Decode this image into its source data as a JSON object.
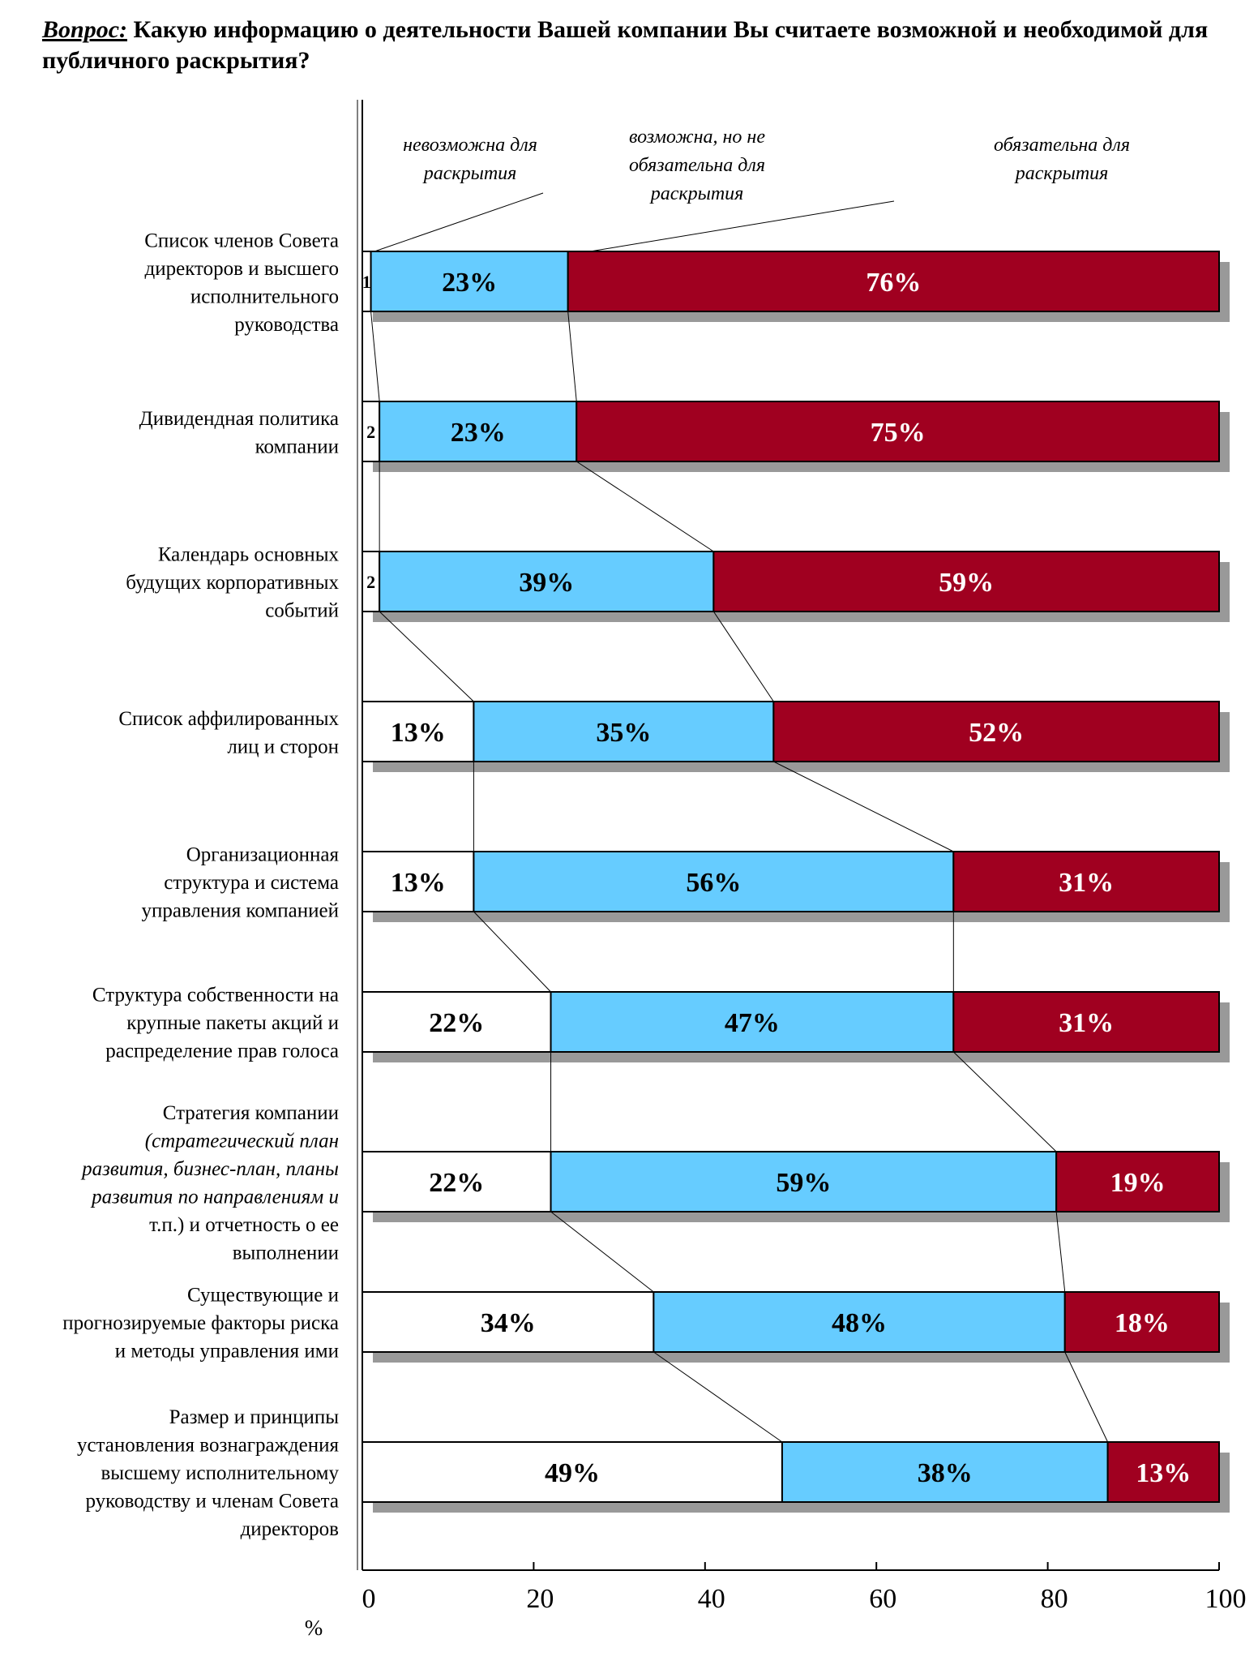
{
  "question": {
    "label": "Вопрос:",
    "text": "Какую информацию о деятельности Вашей компании Вы считаете возможной и необходимой для публичного раскрытия?"
  },
  "chart_data": {
    "type": "bar",
    "orientation": "horizontal",
    "stacked": true,
    "xlim": [
      0,
      100
    ],
    "xticks": [
      "0",
      "20",
      "40",
      "60",
      "80",
      "100"
    ],
    "xlabel": "%",
    "grid": false,
    "legend_annotations": [
      [
        "невозможна для",
        "раскрытия"
      ],
      [
        "возможна, но не",
        "обязательна  для",
        "раскрытия"
      ],
      [
        "обязательна для",
        "раскрытия"
      ]
    ],
    "categories": [
      {
        "lines": [
          "Список членов Совета",
          "директоров и высшего",
          "исполнительного",
          "руководства"
        ]
      },
      {
        "lines": [
          "Дивидендная политика",
          "компании"
        ]
      },
      {
        "lines": [
          "Календарь основных",
          "будущих корпоративных",
          "событий"
        ]
      },
      {
        "lines": [
          "Список аффилированных",
          "лиц и сторон"
        ]
      },
      {
        "lines": [
          "Организационная",
          "структура и система",
          "управления компанией"
        ]
      },
      {
        "lines": [
          "Структура собственности на",
          "крупные пакеты акций и",
          "распределение прав голоса"
        ]
      },
      {
        "lines": [
          "Стратегия компании",
          "(стратегический план",
          "развития, бизнес-план, планы",
          "развития по направлениям и",
          "т.п.) и отчетность о ее",
          "выполнении"
        ],
        "italic_lines": [
          1,
          2,
          3
        ]
      },
      {
        "lines": [
          "Существующие и",
          "прогнозируемые факторы риска",
          "и методы управления ими"
        ]
      },
      {
        "lines": [
          "Размер и принципы",
          "установления вознаграждения",
          "высшему исполнительному",
          "руководству и членам Совета",
          "директоров"
        ]
      }
    ],
    "series": [
      {
        "values": [
          1,
          2,
          2,
          13,
          13,
          22,
          22,
          34,
          49
        ],
        "labels": [
          "1",
          "2",
          "2",
          "13%",
          "13%",
          "22%",
          "22%",
          "34%",
          "49%"
        ]
      },
      {
        "values": [
          23,
          23,
          39,
          35,
          56,
          47,
          59,
          48,
          38
        ],
        "labels": [
          "23%",
          "23%",
          "39%",
          "35%",
          "56%",
          "47%",
          "59%",
          "48%",
          "38%"
        ]
      },
      {
        "values": [
          76,
          75,
          59,
          52,
          31,
          31,
          19,
          18,
          13
        ],
        "labels": [
          "76%",
          "75%",
          "59%",
          "52%",
          "31%",
          "31%",
          "19%",
          "18%",
          "13%"
        ]
      }
    ],
    "colors": [
      "#ffffff",
      "#66ccff",
      "#a00020"
    ],
    "label_colors": [
      "#000000",
      "#000000",
      "#ffffff"
    ]
  }
}
